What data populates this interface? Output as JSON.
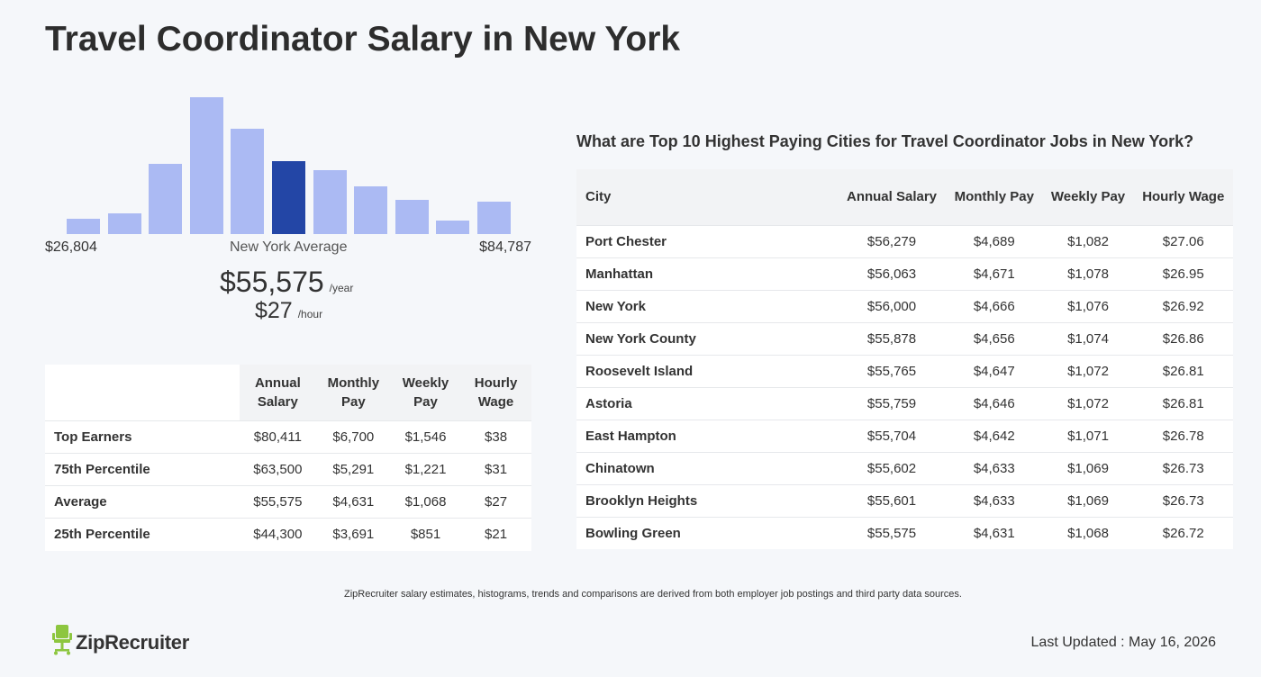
{
  "page": {
    "title": "Travel Coordinator Salary in New York"
  },
  "histogram": {
    "range_min": "$26,804",
    "range_max": "$84,787",
    "average_label": "New York Average",
    "bars": [
      0.11,
      0.15,
      0.51,
      1.0,
      0.77,
      0.53,
      0.47,
      0.35,
      0.25,
      0.1,
      0.24
    ],
    "active_index": 5,
    "bar_color": "#abbaf3",
    "active_color": "#2346a6"
  },
  "salary": {
    "year_value": "$55,575",
    "year_unit": "/year",
    "hour_value": "$27",
    "hour_unit": "/hour"
  },
  "percentile_table": {
    "headers": [
      "",
      "Annual Salary",
      "Monthly Pay",
      "Weekly Pay",
      "Hourly Wage"
    ],
    "rows": [
      [
        "Top Earners",
        "$80,411",
        "$6,700",
        "$1,546",
        "$38"
      ],
      [
        "75th Percentile",
        "$63,500",
        "$5,291",
        "$1,221",
        "$31"
      ],
      [
        "Average",
        "$55,575",
        "$4,631",
        "$1,068",
        "$27"
      ],
      [
        "25th Percentile",
        "$44,300",
        "$3,691",
        "$851",
        "$21"
      ]
    ]
  },
  "cities": {
    "title": "What are Top 10 Highest Paying Cities for Travel Coordinator Jobs in New York?",
    "headers": [
      "City",
      "Annual Salary",
      "Monthly Pay",
      "Weekly Pay",
      "Hourly Wage"
    ],
    "rows": [
      [
        "Port Chester",
        "$56,279",
        "$4,689",
        "$1,082",
        "$27.06"
      ],
      [
        "Manhattan",
        "$56,063",
        "$4,671",
        "$1,078",
        "$26.95"
      ],
      [
        "New York",
        "$56,000",
        "$4,666",
        "$1,076",
        "$26.92"
      ],
      [
        "New York County",
        "$55,878",
        "$4,656",
        "$1,074",
        "$26.86"
      ],
      [
        "Roosevelt Island",
        "$55,765",
        "$4,647",
        "$1,072",
        "$26.81"
      ],
      [
        "Astoria",
        "$55,759",
        "$4,646",
        "$1,072",
        "$26.81"
      ],
      [
        "East Hampton",
        "$55,704",
        "$4,642",
        "$1,071",
        "$26.78"
      ],
      [
        "Chinatown",
        "$55,602",
        "$4,633",
        "$1,069",
        "$26.73"
      ],
      [
        "Brooklyn Heights",
        "$55,601",
        "$4,633",
        "$1,069",
        "$26.73"
      ],
      [
        "Bowling Green",
        "$55,575",
        "$4,631",
        "$1,068",
        "$26.72"
      ]
    ]
  },
  "footer": {
    "note": "ZipRecruiter salary estimates, histograms, trends and comparisons are derived from both employer job postings and third party data sources.",
    "logo_text": "ZipRecruiter",
    "logo_icon": "chair-icon",
    "logo_color": "#8dc63f",
    "last_updated": "Last Updated : May 16, 2026"
  }
}
